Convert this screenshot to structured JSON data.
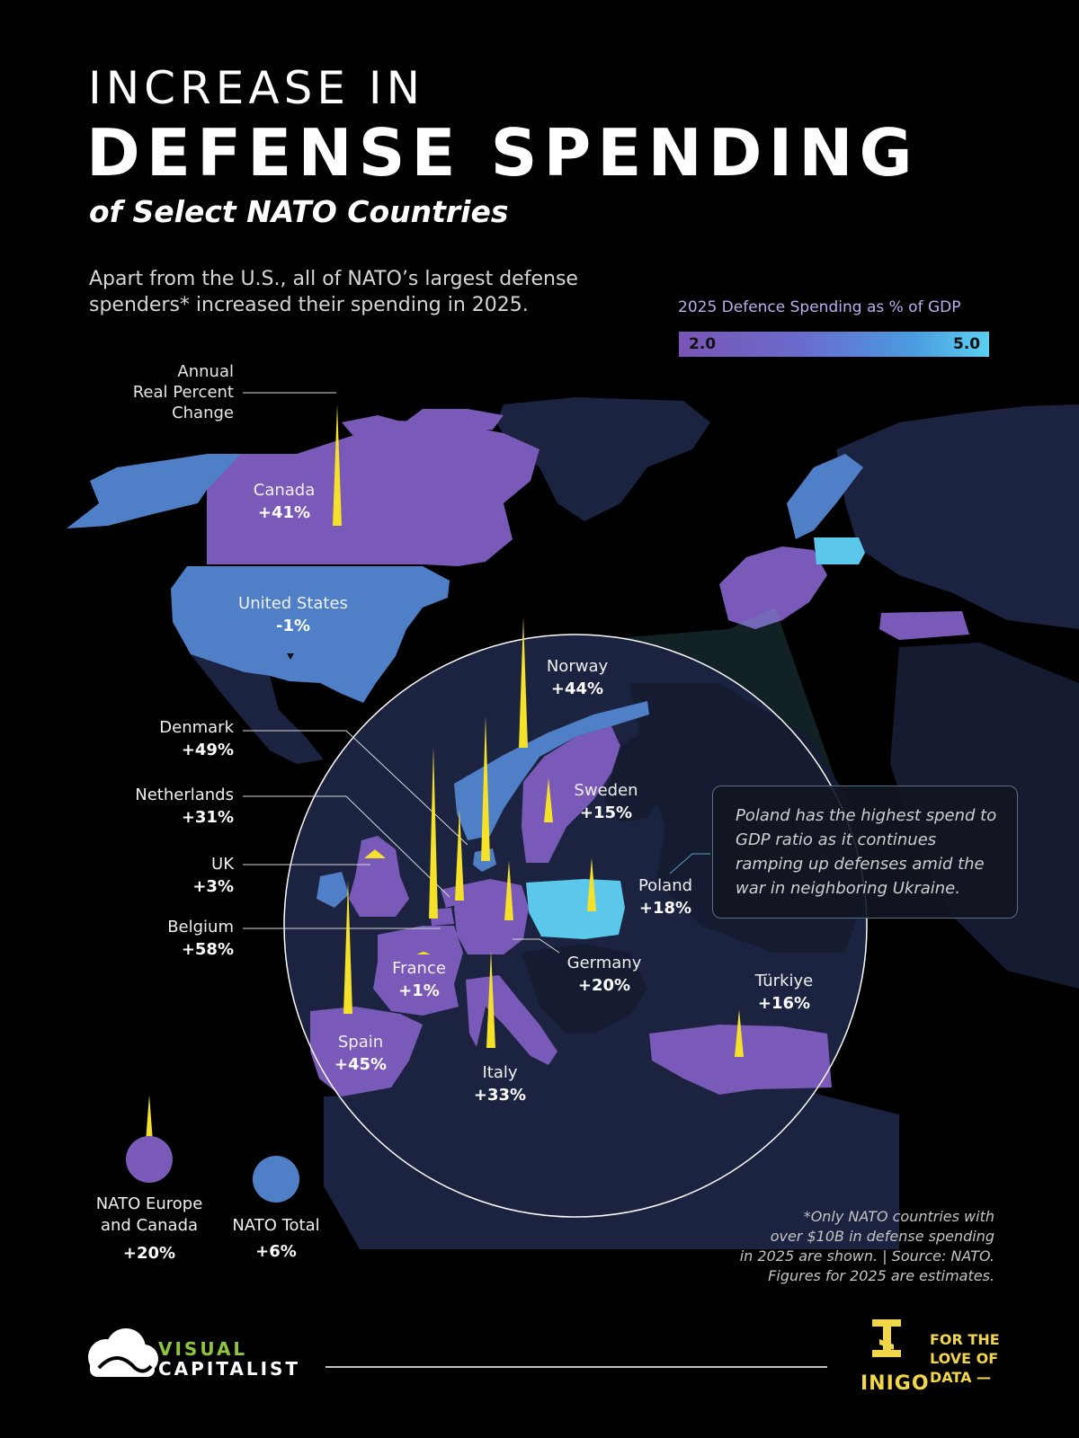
{
  "header": {
    "title_line1": "INCREASE IN",
    "title_line2": "DEFENSE SPENDING",
    "subtitle": "of Select NATO Countries",
    "intro_line1": "Apart from the U.S., all of NATO’s largest defense",
    "intro_line2": "spenders* increased their spending in 2025."
  },
  "legend": {
    "title": "2025 Defence Spending as % of GDP",
    "min_label": "2.0",
    "max_label": "5.0",
    "min_value": 2.0,
    "max_value": 5.0,
    "colors": [
      "#7a55b6",
      "#5bd0f0"
    ]
  },
  "annual_label": {
    "line1": "Annual",
    "line2": "Real Percent",
    "line3": "Change"
  },
  "countries": [
    {
      "name": "Canada",
      "change": "+41%",
      "change_value": 41
    },
    {
      "name": "United States",
      "change": "-1%",
      "change_value": -1
    },
    {
      "name": "Norway",
      "change": "+44%",
      "change_value": 44
    },
    {
      "name": "Denmark",
      "change": "+49%",
      "change_value": 49
    },
    {
      "name": "Netherlands",
      "change": "+31%",
      "change_value": 31
    },
    {
      "name": "Sweden",
      "change": "+15%",
      "change_value": 15
    },
    {
      "name": "UK",
      "change": "+3%",
      "change_value": 3
    },
    {
      "name": "Poland",
      "change": "+18%",
      "change_value": 18
    },
    {
      "name": "Belgium",
      "change": "+58%",
      "change_value": 58
    },
    {
      "name": "France",
      "change": "+1%",
      "change_value": 1
    },
    {
      "name": "Germany",
      "change": "+20%",
      "change_value": 20
    },
    {
      "name": "Türkiye",
      "change": "+16%",
      "change_value": 16
    },
    {
      "name": "Spain",
      "change": "+45%",
      "change_value": 45
    },
    {
      "name": "Italy",
      "change": "+33%",
      "change_value": 33
    }
  ],
  "aggregates": [
    {
      "name_line1": "NATO Europe",
      "name_line2": "and Canada",
      "change": "+20%",
      "change_value": 20
    },
    {
      "name_line1": "NATO Total",
      "name_line2": "",
      "change": "+6%",
      "change_value": 6
    }
  ],
  "callout": "Poland has the highest spend to GDP ratio as it continues ramping up defenses amid the war in neighboring Ukraine.",
  "footnote": {
    "line1": "*Only NATO countries with",
    "line2": "over $10B in defense spending",
    "line3": "in 2025 are shown. | Source: NATO.",
    "line4": "Figures for 2025 are estimates."
  },
  "branding": {
    "vc_word1": "VISUAL",
    "vc_word2": "CAPITALIST",
    "inigo": "INIGO",
    "love_line1": "FOR THE",
    "love_line2": "LOVE OF",
    "love_line3": "DATA —"
  },
  "colors": {
    "spike": "#f5e12a",
    "high_spend": "#5bc7ea",
    "mid_spend": "#4f7fc6",
    "low_spend": "#7a5ab8",
    "non_nato": "#1b2340",
    "non_nato_dark": "#151b30"
  }
}
